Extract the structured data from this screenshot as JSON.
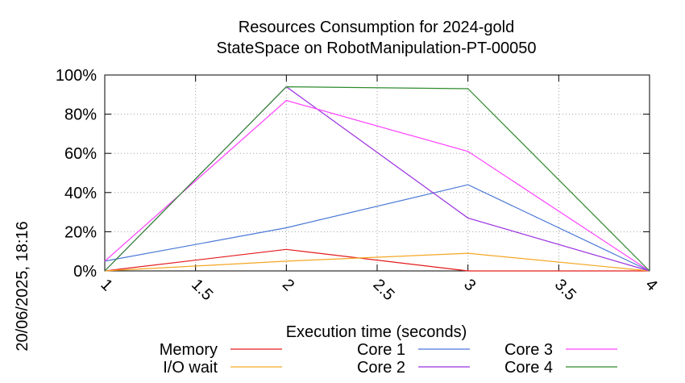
{
  "chart_data": {
    "type": "line",
    "title": "Resources Consumption for 2024-gold",
    "subtitle": "StateSpace on RobotManipulation-PT-00050",
    "xlabel": "Execution time (seconds)",
    "ylabel": "",
    "side_label": "20/06/2025, 18:16",
    "xlim": [
      1,
      4
    ],
    "ylim": [
      0,
      100
    ],
    "x_ticks": [
      "1",
      "1.5",
      "2",
      "2.5",
      "3",
      "3.5",
      "4"
    ],
    "y_ticks": [
      "0%",
      "20%",
      "40%",
      "60%",
      "80%",
      "100%"
    ],
    "grid": true,
    "legend_position": "bottom",
    "series": [
      {
        "name": "Memory",
        "color": "#e31a1c",
        "x": [
          1,
          2,
          3,
          4
        ],
        "values": [
          0,
          11,
          0,
          0
        ]
      },
      {
        "name": "I/O wait",
        "color": "#f5a623",
        "x": [
          1,
          2,
          3,
          4
        ],
        "values": [
          0,
          5,
          9,
          0
        ]
      },
      {
        "name": "Core 1",
        "color": "#4a78d6",
        "x": [
          1,
          2,
          3,
          4
        ],
        "values": [
          5,
          22,
          44,
          0
        ]
      },
      {
        "name": "Core 2",
        "color": "#9b30e0",
        "x": [
          1,
          2,
          3,
          4
        ],
        "values": [
          0,
          94,
          27,
          0
        ]
      },
      {
        "name": "Core 3",
        "color": "#ff40ff",
        "x": [
          1,
          2,
          3,
          4
        ],
        "values": [
          5,
          87,
          61,
          0
        ]
      },
      {
        "name": "Core 4",
        "color": "#2e8b2e",
        "x": [
          1,
          2,
          3,
          4
        ],
        "values": [
          0,
          94,
          93,
          0
        ]
      }
    ]
  }
}
